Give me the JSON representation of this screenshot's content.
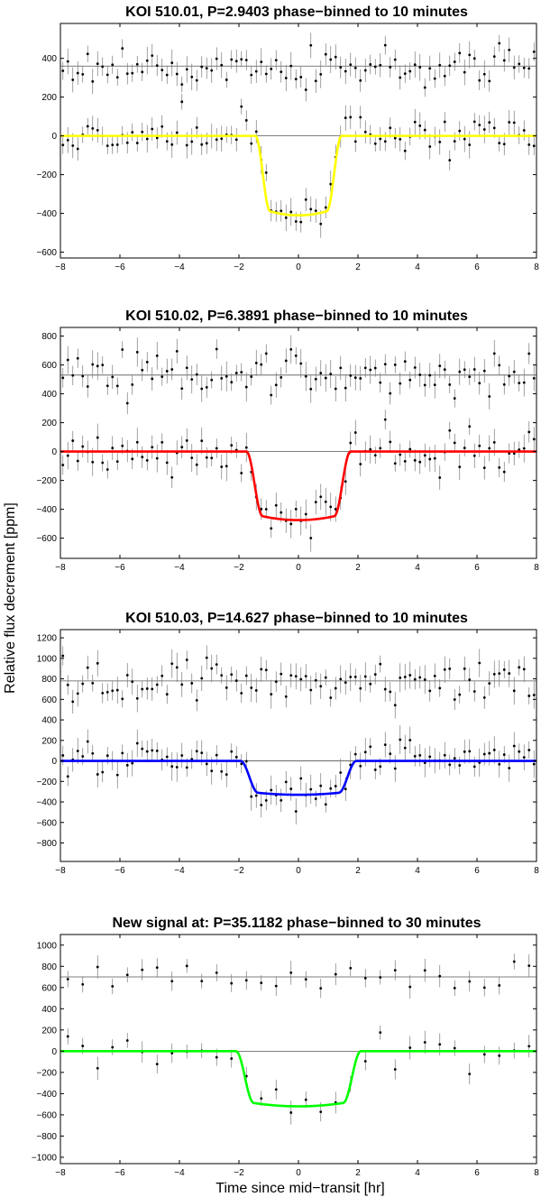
{
  "figure": {
    "ylabel": "Relative flux decrement [ppm]",
    "xlabel": "Time since mid−transit [hr]"
  },
  "chart_data": [
    {
      "type": "scatter",
      "title": "KOI 510.01, P=2.9403 phase−binned to 10 minutes",
      "xlim": [
        -8,
        8
      ],
      "ylim": [
        -630,
        580
      ],
      "xticks": [
        -8,
        -6,
        -4,
        -2,
        0,
        2,
        4,
        6,
        8
      ],
      "yticks": [
        -600,
        -400,
        -200,
        0,
        200,
        400
      ],
      "baselines": [
        0,
        360
      ],
      "offset": 360,
      "model": {
        "color": "#ffff00",
        "depth": 410,
        "t_total": 1.45,
        "t_flat": 0.95
      },
      "bin_minutes": 10,
      "noise": 55,
      "seed": 11
    },
    {
      "type": "scatter",
      "title": "KOI 510.02, P=6.3891 phase−binned to 10 minutes",
      "xlim": [
        -8,
        8
      ],
      "ylim": [
        -740,
        860
      ],
      "xticks": [
        -8,
        -6,
        -4,
        -2,
        0,
        2,
        4,
        6,
        8
      ],
      "yticks": [
        -600,
        -400,
        -200,
        0,
        200,
        400,
        600,
        800
      ],
      "baselines": [
        0,
        530
      ],
      "offset": 530,
      "model": {
        "color": "#ff0000",
        "depth": 475,
        "t_total": 1.75,
        "t_flat": 1.2
      },
      "bin_minutes": 10,
      "noise": 80,
      "seed": 23
    },
    {
      "type": "scatter",
      "title": "KOI 510.03, P=14.627 phase−binned to 10 minutes",
      "xlim": [
        -8,
        8
      ],
      "ylim": [
        -980,
        1280
      ],
      "xticks": [
        -8,
        -6,
        -4,
        -2,
        0,
        2,
        4,
        6,
        8
      ],
      "yticks": [
        -800,
        -600,
        -400,
        -200,
        0,
        200,
        400,
        600,
        800,
        1000,
        1200
      ],
      "baselines": [
        0,
        780
      ],
      "offset": 780,
      "model": {
        "color": "#0000ff",
        "depth": 330,
        "t_total": 1.95,
        "t_flat": 1.35
      },
      "bin_minutes": 10,
      "noise": 110,
      "seed": 37
    },
    {
      "type": "scatter",
      "title": "New signal at: P=35.1182 phase−binned to 30 minutes",
      "xlim": [
        -8,
        8
      ],
      "ylim": [
        -1060,
        1100
      ],
      "xticks": [
        -8,
        -6,
        -4,
        -2,
        0,
        2,
        4,
        6,
        8
      ],
      "yticks": [
        -1000,
        -800,
        -600,
        -400,
        -200,
        0,
        200,
        400,
        600,
        800,
        1000
      ],
      "baselines": [
        0,
        700
      ],
      "offset": 700,
      "model": {
        "color": "#00ff00",
        "depth": 520,
        "t_total": 2.1,
        "t_flat": 1.5
      },
      "bin_minutes": 30,
      "noise": 90,
      "seed": 53
    }
  ]
}
